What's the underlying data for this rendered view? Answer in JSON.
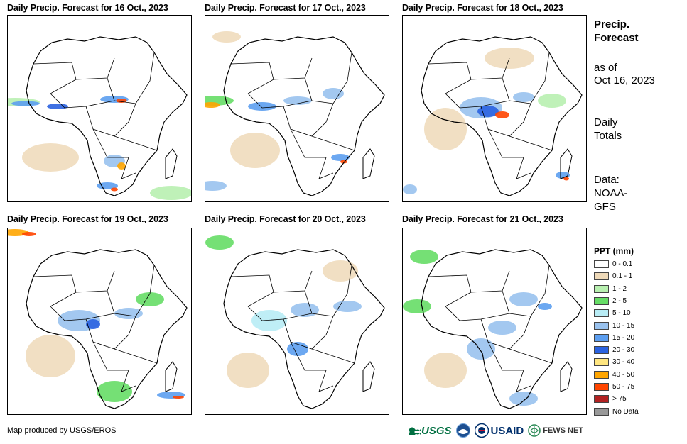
{
  "panels": [
    {
      "title": "Daily Precip. Forecast for 16 Oct., 2023"
    },
    {
      "title": "Daily Precip. Forecast for 17 Oct., 2023"
    },
    {
      "title": "Daily Precip. Forecast for 18 Oct., 2023"
    },
    {
      "title": "Daily Precip. Forecast for 19 Oct., 2023"
    },
    {
      "title": "Daily Precip. Forecast for 20 Oct., 2023"
    },
    {
      "title": "Daily Precip. Forecast for 21 Oct., 2023"
    }
  ],
  "side": {
    "heading_line1": "Precip.",
    "heading_line2": "Forecast",
    "asof_line1": "as of",
    "asof_line2": "Oct 16, 2023",
    "totals_line1": "Daily",
    "totals_line2": "Totals",
    "data_line1": "Data:",
    "data_line2": "NOAA-",
    "data_line3": "GFS"
  },
  "legend": {
    "title": "PPT (mm)",
    "items": [
      {
        "label": "0 - 0.1",
        "color": "#ffffff"
      },
      {
        "label": "0.1 - 1",
        "color": "#eed9b8"
      },
      {
        "label": "1 - 2",
        "color": "#b8f0b0"
      },
      {
        "label": "2 - 5",
        "color": "#66dd66"
      },
      {
        "label": "5 - 10",
        "color": "#b8ecf5"
      },
      {
        "label": "10 - 15",
        "color": "#99c2ee"
      },
      {
        "label": "15 - 20",
        "color": "#5c9ef0"
      },
      {
        "label": "20 - 30",
        "color": "#2a62e0"
      },
      {
        "label": "30 - 40",
        "color": "#ffe680"
      },
      {
        "label": "40 - 50",
        "color": "#ffa500"
      },
      {
        "label": "50 - 75",
        "color": "#ff4500"
      },
      {
        "label": "> 75",
        "color": "#b22222"
      },
      {
        "label": "No Data",
        "color": "#999999"
      }
    ]
  },
  "footer": {
    "credit": "Map produced by USGS/EROS",
    "usgs": "USGS",
    "usaid": "USAID",
    "fews": "FEWS NET"
  }
}
